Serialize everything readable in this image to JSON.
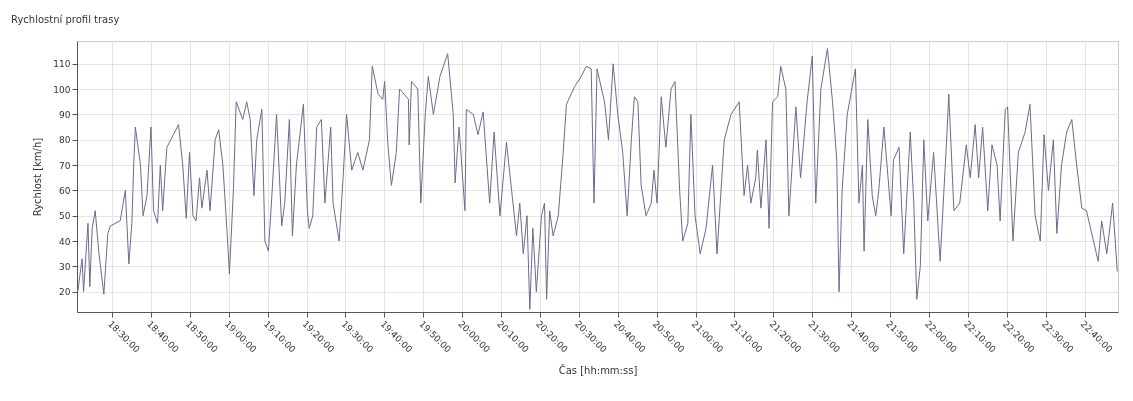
{
  "chart_data": {
    "type": "line",
    "title": "Rychlostní profil trasy",
    "xlabel": "Čas [hh:mm:ss]",
    "ylabel": "Rychlost [km/h]",
    "x": [
      18.353,
      18.372,
      18.378,
      18.397,
      18.405,
      18.415,
      18.428,
      18.443,
      18.465,
      18.482,
      18.493,
      18.535,
      18.557,
      18.572,
      18.585,
      18.593,
      18.6,
      18.622,
      18.633,
      18.65,
      18.667,
      18.678,
      18.695,
      18.707,
      18.717,
      18.735,
      18.785,
      18.803,
      18.818,
      18.832,
      18.847,
      18.86,
      18.875,
      18.885,
      18.907,
      18.92,
      18.942,
      18.957,
      18.975,
      18.992,
      19.003,
      19.02,
      19.032,
      19.06,
      19.077,
      19.092,
      19.108,
      19.12,
      19.142,
      19.155,
      19.17,
      19.183,
      19.205,
      19.227,
      19.24,
      19.26,
      19.273,
      19.29,
      19.32,
      19.337,
      19.345,
      19.36,
      19.377,
      19.397,
      19.412,
      19.437,
      19.447,
      19.473,
      19.49,
      19.505,
      19.527,
      19.553,
      19.575,
      19.603,
      19.615,
      19.64,
      19.66,
      19.668,
      19.682,
      19.697,
      19.718,
      19.732,
      19.742,
      19.77,
      19.773,
      19.783,
      19.81,
      19.823,
      19.842,
      19.855,
      19.877,
      19.905,
      19.938,
      19.962,
      19.97,
      19.987,
      20.012,
      20.018,
      20.048,
      20.068,
      20.09,
      20.118,
      20.137,
      20.162,
      20.19,
      20.212,
      20.233,
      20.247,
      20.262,
      20.278,
      20.29,
      20.303,
      20.318,
      20.34,
      20.353,
      20.362,
      20.375,
      20.39,
      20.412,
      20.433,
      20.447,
      20.482,
      20.51,
      20.532,
      20.553,
      20.565,
      20.578,
      20.61,
      20.627,
      20.647,
      20.667,
      20.688,
      20.707,
      20.725,
      20.738,
      20.753,
      20.767,
      20.788,
      20.81,
      20.822,
      20.835,
      20.853,
      20.873,
      20.895,
      20.912,
      20.932,
      20.945,
      20.967,
      20.98,
      20.998,
      21.02,
      21.045,
      21.073,
      21.092,
      21.123,
      21.152,
      21.187,
      21.208,
      21.223,
      21.237,
      21.258,
      21.265,
      21.28,
      21.302,
      21.315,
      21.33,
      21.352,
      21.365,
      21.387,
      21.4,
      21.43,
      21.45,
      21.478,
      21.5,
      21.515,
      21.537,
      21.565,
      21.587,
      21.605,
      21.615,
      21.628,
      21.65,
      21.685,
      21.7,
      21.715,
      21.722,
      21.738,
      21.757,
      21.772,
      21.785,
      21.807,
      21.838,
      21.848,
      21.872,
      21.892,
      21.92,
      21.935,
      21.948,
      21.963,
      21.978,
      21.995,
      22.02,
      22.048,
      22.077,
      22.085,
      22.107,
      22.132,
      22.16,
      22.177,
      22.198,
      22.213,
      22.23,
      22.252,
      22.27,
      22.292,
      22.305,
      22.327,
      22.337,
      22.36,
      22.383,
      22.412,
      22.433,
      22.455,
      22.477,
      22.493,
      22.512,
      22.533,
      22.548,
      22.568,
      22.59,
      22.612,
      22.633,
      22.655,
      22.675,
      22.705,
      22.725,
      22.74,
      22.762,
      22.787,
      22.807
    ],
    "series": [
      {
        "color": "#6b6b8f",
        "values": [
          20,
          33,
          20,
          47,
          22,
          45,
          52,
          36,
          19,
          43,
          46,
          48,
          60,
          31,
          47,
          70,
          85,
          70,
          50,
          58,
          85,
          52,
          47,
          70,
          52,
          77,
          86,
          70,
          49,
          75,
          50,
          48,
          65,
          53,
          68,
          52,
          80,
          84,
          70,
          45,
          27,
          60,
          95,
          88,
          95,
          88,
          58,
          80,
          92,
          40,
          36,
          55,
          90,
          46,
          55,
          88,
          42,
          70,
          94,
          52,
          45,
          50,
          85,
          88,
          55,
          85,
          55,
          40,
          65,
          90,
          68,
          75,
          68,
          80,
          109,
          98,
          96,
          103,
          78,
          62,
          75,
          100,
          99,
          96,
          78,
          103,
          100,
          55,
          90,
          105,
          90,
          105,
          114,
          90,
          63,
          85,
          52,
          92,
          90,
          82,
          91,
          55,
          83,
          50,
          79,
          60,
          42,
          55,
          35,
          50,
          13,
          45,
          20,
          50,
          55,
          17,
          52,
          42,
          50,
          75,
          94,
          101,
          105,
          109,
          108,
          55,
          108,
          95,
          80,
          110,
          90,
          75,
          50,
          80,
          97,
          95,
          62,
          50,
          55,
          68,
          55,
          97,
          77,
          100,
          103,
          60,
          40,
          47,
          90,
          50,
          35,
          45,
          70,
          35,
          80,
          90,
          95,
          58,
          70,
          55,
          65,
          76,
          53,
          80,
          45,
          95,
          97,
          109,
          100,
          50,
          93,
          65,
          95,
          113,
          55,
          100,
          116,
          95,
          72,
          20,
          60,
          90,
          108,
          55,
          70,
          36,
          88,
          58,
          50,
          60,
          85,
          50,
          72,
          77,
          35,
          83,
          55,
          17,
          30,
          80,
          48,
          75,
          32,
          82,
          98,
          52,
          55,
          78,
          65,
          86,
          65,
          85,
          52,
          78,
          70,
          48,
          92,
          93,
          40,
          75,
          83,
          94,
          50,
          40,
          82,
          60,
          80,
          43,
          70,
          83,
          88,
          70,
          53,
          52,
          40,
          32,
          48,
          35,
          55,
          28
        ]
      }
    ],
    "xlim": [
      18.35,
      22.81
    ],
    "ylim": [
      12,
      119
    ],
    "xticks": [
      {
        "value": 18.5,
        "label": "18:30:00"
      },
      {
        "value": 18.6667,
        "label": "18:40:00"
      },
      {
        "value": 18.8333,
        "label": "18:50:00"
      },
      {
        "value": 19,
        "label": "19:00:00"
      },
      {
        "value": 19.1667,
        "label": "19:10:00"
      },
      {
        "value": 19.3333,
        "label": "19:20:00"
      },
      {
        "value": 19.5,
        "label": "19:30:00"
      },
      {
        "value": 19.6667,
        "label": "19:40:00"
      },
      {
        "value": 19.8333,
        "label": "19:50:00"
      },
      {
        "value": 20,
        "label": "20:00:00"
      },
      {
        "value": 20.1667,
        "label": "20:10:00"
      },
      {
        "value": 20.3333,
        "label": "20:20:00"
      },
      {
        "value": 20.5,
        "label": "20:30:00"
      },
      {
        "value": 20.6667,
        "label": "20:40:00"
      },
      {
        "value": 20.8333,
        "label": "20:50:00"
      },
      {
        "value": 21,
        "label": "21:00:00"
      },
      {
        "value": 21.1667,
        "label": "21:10:00"
      },
      {
        "value": 21.3333,
        "label": "21:20:00"
      },
      {
        "value": 21.5,
        "label": "21:30:00"
      },
      {
        "value": 21.6667,
        "label": "21:40:00"
      },
      {
        "value": 21.8333,
        "label": "21:50:00"
      },
      {
        "value": 22,
        "label": "22:00:00"
      },
      {
        "value": 22.1667,
        "label": "22:10:00"
      },
      {
        "value": 22.3333,
        "label": "22:20:00"
      },
      {
        "value": 22.5,
        "label": "22:30:00"
      },
      {
        "value": 22.6667,
        "label": "22:40:00"
      }
    ],
    "yticks": [
      20,
      30,
      40,
      50,
      60,
      70,
      80,
      90,
      100,
      110
    ],
    "grid": true
  }
}
